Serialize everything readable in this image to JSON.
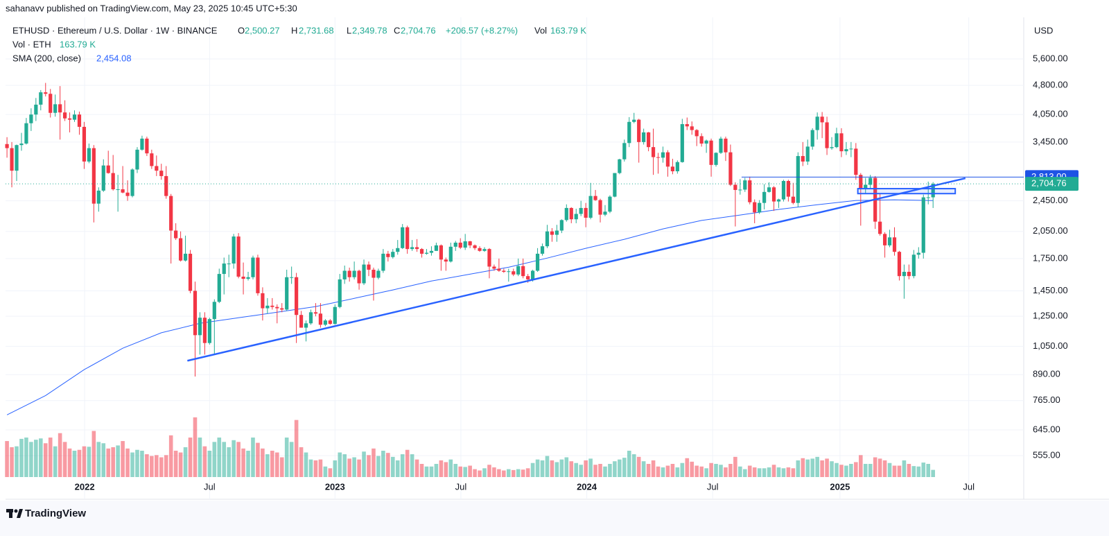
{
  "header": {
    "published": "sahanavv published on TradingView.com, May 23, 2025 10:45 UTC+5:30",
    "footer": "TradingView"
  },
  "chart_data": {
    "type": "candlestick",
    "symbol": "ETHUSD · Ethereum / U.S. Dollar · 1W · BINANCE",
    "ohlc_names": [
      "O",
      "H",
      "L",
      "C"
    ],
    "ohlc_labels": [
      "2,500.27",
      "2,731.68",
      "2,349.78",
      "2,704.76"
    ],
    "change_label": "+206.57 (+8.27%)",
    "volume_name": "Vol",
    "volume_legend": "Vol · ETH",
    "volume_label": "163.79 K",
    "currency": "USD",
    "up_color": "#22ab94",
    "down_color": "#f23645",
    "log_scale": true,
    "grid": true,
    "ylim": [
      490,
      7135
    ],
    "yticks": [
      {
        "value": 5600,
        "label": "5,600.00"
      },
      {
        "value": 4800,
        "label": "4,800.00"
      },
      {
        "value": 4050,
        "label": "4,050.00"
      },
      {
        "value": 3450,
        "label": "3,450.00"
      },
      {
        "value": 2450,
        "label": "2,450.00"
      },
      {
        "value": 2050,
        "label": "2,050.00"
      },
      {
        "value": 1750,
        "label": "1,750.00"
      },
      {
        "value": 1450,
        "label": "1,450.00"
      },
      {
        "value": 1250,
        "label": "1,250.00"
      },
      {
        "value": 1050,
        "label": "1,050.00"
      },
      {
        "value": 890,
        "label": "890.00"
      },
      {
        "value": 765,
        "label": "765.00"
      },
      {
        "value": 645,
        "label": "645.00"
      },
      {
        "value": 555,
        "label": "555.00"
      }
    ],
    "xlim": [
      -0.3,
      210.8
    ],
    "xticks": [
      {
        "value": 16.1,
        "label": "2022"
      },
      {
        "value": 42,
        "label": "Jul"
      },
      {
        "value": 68,
        "label": "2023"
      },
      {
        "value": 94.1,
        "label": "Jul"
      },
      {
        "value": 120.2,
        "label": "2024"
      },
      {
        "value": 146.3,
        "label": "Jul"
      },
      {
        "value": 172.7,
        "label": "2025"
      },
      {
        "value": 199.4,
        "label": "Jul"
      }
    ],
    "candles": [
      [
        3410,
        3550,
        3150,
        3330
      ],
      [
        3330,
        3450,
        2650,
        2920
      ],
      [
        2920,
        3400,
        2750,
        3390
      ],
      [
        3390,
        3640,
        3280,
        3420
      ],
      [
        3420,
        3970,
        3400,
        3850
      ],
      [
        3850,
        4200,
        3680,
        4050
      ],
      [
        4050,
        4460,
        3900,
        4290
      ],
      [
        4290,
        4670,
        4150,
        4610
      ],
      [
        4610,
        4870,
        4500,
        4570
      ],
      [
        4570,
        4700,
        3980,
        4090
      ],
      [
        4090,
        4550,
        4000,
        4300
      ],
      [
        4300,
        4780,
        3500,
        4100
      ],
      [
        4100,
        4400,
        3900,
        3960
      ],
      [
        3960,
        4100,
        3650,
        3930
      ],
      [
        3930,
        4150,
        3880,
        4050
      ],
      [
        4050,
        4120,
        3600,
        3770
      ],
      [
        3770,
        3880,
        2950,
        3080
      ],
      [
        3080,
        3420,
        3050,
        3330
      ],
      [
        3330,
        3390,
        2160,
        2410
      ],
      [
        2410,
        2650,
        2300,
        2600
      ],
      [
        2600,
        3120,
        2580,
        3010
      ],
      [
        3010,
        3280,
        2870,
        2880
      ],
      [
        2880,
        3200,
        2600,
        2620
      ],
      [
        2620,
        2850,
        2300,
        2620
      ],
      [
        2620,
        3000,
        2560,
        2570
      ],
      [
        2570,
        2760,
        2450,
        2520
      ],
      [
        2520,
        2960,
        2500,
        2940
      ],
      [
        2940,
        3350,
        2880,
        3300
      ],
      [
        3300,
        3580,
        3280,
        3520
      ],
      [
        3520,
        3560,
        3180,
        3230
      ],
      [
        3230,
        3300,
        2950,
        3000
      ],
      [
        3000,
        3190,
        2830,
        2920
      ],
      [
        2920,
        3040,
        2770,
        2830
      ],
      [
        2830,
        3000,
        2480,
        2520
      ],
      [
        2520,
        2550,
        1700,
        2060
      ],
      [
        2060,
        2150,
        1950,
        1970
      ],
      [
        1970,
        2050,
        1720,
        1730
      ],
      [
        1730,
        2000,
        1720,
        1800
      ],
      [
        1800,
        1840,
        1430,
        1450
      ],
      [
        1450,
        1530,
        880,
        1120
      ],
      [
        1120,
        1280,
        1000,
        1240
      ],
      [
        1240,
        1280,
        1000,
        1070
      ],
      [
        1070,
        1240,
        1060,
        1230
      ],
      [
        1230,
        1380,
        1000,
        1360
      ],
      [
        1360,
        1650,
        1350,
        1600
      ],
      [
        1600,
        1760,
        1420,
        1700
      ],
      [
        1700,
        1790,
        1570,
        1700
      ],
      [
        1700,
        2020,
        1650,
        1990
      ],
      [
        1990,
        2030,
        1560,
        1575
      ],
      [
        1575,
        1710,
        1420,
        1555
      ],
      [
        1555,
        1620,
        1540,
        1570
      ],
      [
        1570,
        1780,
        1550,
        1760
      ],
      [
        1760,
        1790,
        1410,
        1430
      ],
      [
        1430,
        1480,
        1220,
        1310
      ],
      [
        1310,
        1390,
        1270,
        1330
      ],
      [
        1330,
        1390,
        1300,
        1320
      ],
      [
        1320,
        1340,
        1200,
        1310
      ],
      [
        1310,
        1350,
        1280,
        1300
      ],
      [
        1300,
        1640,
        1290,
        1570
      ],
      [
        1570,
        1670,
        1510,
        1570
      ],
      [
        1570,
        1610,
        1070,
        1260
      ],
      [
        1260,
        1290,
        1170,
        1170
      ],
      [
        1170,
        1220,
        1080,
        1200
      ],
      [
        1200,
        1300,
        1190,
        1280
      ],
      [
        1280,
        1350,
        1250,
        1270
      ],
      [
        1270,
        1350,
        1170,
        1190
      ],
      [
        1190,
        1230,
        1180,
        1220
      ],
      [
        1220,
        1230,
        1190,
        1196
      ],
      [
        1196,
        1340,
        1190,
        1320
      ],
      [
        1320,
        1600,
        1310,
        1550
      ],
      [
        1550,
        1680,
        1510,
        1630
      ],
      [
        1630,
        1660,
        1530,
        1570
      ],
      [
        1570,
        1720,
        1550,
        1630
      ],
      [
        1630,
        1640,
        1460,
        1515
      ],
      [
        1515,
        1740,
        1500,
        1690
      ],
      [
        1690,
        1720,
        1580,
        1640
      ],
      [
        1640,
        1660,
        1370,
        1565
      ],
      [
        1565,
        1650,
        1550,
        1630
      ],
      [
        1630,
        1850,
        1610,
        1800
      ],
      [
        1800,
        1830,
        1720,
        1765
      ],
      [
        1765,
        1850,
        1750,
        1820
      ],
      [
        1820,
        1950,
        1790,
        1860
      ],
      [
        1860,
        2140,
        1850,
        2100
      ],
      [
        2100,
        2120,
        1800,
        1850
      ],
      [
        1850,
        1950,
        1830,
        1870
      ],
      [
        1870,
        1960,
        1820,
        1850
      ],
      [
        1850,
        1860,
        1760,
        1800
      ],
      [
        1800,
        1850,
        1790,
        1810
      ],
      [
        1810,
        1880,
        1780,
        1830
      ],
      [
        1830,
        1920,
        1830,
        1890
      ],
      [
        1890,
        1900,
        1630,
        1740
      ],
      [
        1740,
        1760,
        1630,
        1720
      ],
      [
        1720,
        1920,
        1710,
        1875
      ],
      [
        1875,
        1940,
        1830,
        1920
      ],
      [
        1920,
        1970,
        1850,
        1865
      ],
      [
        1865,
        2020,
        1840,
        1935
      ],
      [
        1935,
        1940,
        1860,
        1890
      ],
      [
        1890,
        1900,
        1840,
        1860
      ],
      [
        1860,
        1880,
        1820,
        1830
      ],
      [
        1830,
        1870,
        1820,
        1850
      ],
      [
        1850,
        1860,
        1560,
        1670
      ],
      [
        1670,
        1690,
        1630,
        1650
      ],
      [
        1650,
        1750,
        1620,
        1630
      ],
      [
        1630,
        1650,
        1610,
        1620
      ],
      [
        1620,
        1650,
        1530,
        1625
      ],
      [
        1625,
        1650,
        1580,
        1595
      ],
      [
        1595,
        1750,
        1580,
        1675
      ],
      [
        1675,
        1750,
        1560,
        1580
      ],
      [
        1580,
        1600,
        1520,
        1550
      ],
      [
        1550,
        1640,
        1530,
        1630
      ],
      [
        1630,
        1860,
        1620,
        1800
      ],
      [
        1800,
        1910,
        1780,
        1880
      ],
      [
        1880,
        2130,
        1860,
        2050
      ],
      [
        2050,
        2090,
        1930,
        2010
      ],
      [
        2010,
        2130,
        1930,
        2060
      ],
      [
        2060,
        2200,
        2030,
        2190
      ],
      [
        2190,
        2400,
        2170,
        2350
      ],
      [
        2350,
        2360,
        2150,
        2200
      ],
      [
        2200,
        2340,
        2150,
        2270
      ],
      [
        2270,
        2450,
        2240,
        2350
      ],
      [
        2350,
        2420,
        2100,
        2220
      ],
      [
        2220,
        2720,
        2200,
        2520
      ],
      [
        2520,
        2610,
        2450,
        2460
      ],
      [
        2460,
        2480,
        2160,
        2260
      ],
      [
        2260,
        2390,
        2240,
        2300
      ],
      [
        2300,
        2530,
        2280,
        2510
      ],
      [
        2510,
        2880,
        2500,
        2880
      ],
      [
        2880,
        3130,
        2860,
        3120
      ],
      [
        3120,
        3500,
        3080,
        3430
      ],
      [
        3430,
        3990,
        3350,
        3880
      ],
      [
        3880,
        4090,
        3850,
        3930
      ],
      [
        3930,
        3950,
        3060,
        3450
      ],
      [
        3450,
        3730,
        3400,
        3650
      ],
      [
        3650,
        3660,
        3270,
        3350
      ],
      [
        3350,
        3730,
        2850,
        3160
      ],
      [
        3160,
        3240,
        2870,
        3150
      ],
      [
        3150,
        3360,
        3060,
        3250
      ],
      [
        3250,
        3290,
        2820,
        2990
      ],
      [
        2990,
        3130,
        2860,
        2910
      ],
      [
        2910,
        3100,
        2870,
        3070
      ],
      [
        3070,
        3950,
        3060,
        3830
      ],
      [
        3830,
        3980,
        3700,
        3780
      ],
      [
        3780,
        3890,
        3600,
        3700
      ],
      [
        3700,
        3720,
        3370,
        3570
      ],
      [
        3570,
        3630,
        3360,
        3420
      ],
      [
        3420,
        3500,
        3240,
        3480
      ],
      [
        3480,
        3520,
        2820,
        3020
      ],
      [
        3020,
        3250,
        2990,
        3240
      ],
      [
        3240,
        3560,
        3220,
        3520
      ],
      [
        3520,
        3560,
        3090,
        3250
      ],
      [
        3250,
        3400,
        2670,
        2690
      ],
      [
        2690,
        2730,
        2110,
        2610
      ],
      [
        2610,
        2780,
        2540,
        2615
      ],
      [
        2615,
        2800,
        2580,
        2760
      ],
      [
        2760,
        2820,
        2400,
        2430
      ],
      [
        2430,
        2470,
        2150,
        2290
      ],
      [
        2290,
        2460,
        2270,
        2420
      ],
      [
        2420,
        2700,
        2330,
        2580
      ],
      [
        2580,
        2730,
        2570,
        2650
      ],
      [
        2650,
        2670,
        2310,
        2440
      ],
      [
        2440,
        2480,
        2350,
        2470
      ],
      [
        2470,
        2770,
        2440,
        2750
      ],
      [
        2750,
        2770,
        2440,
        2510
      ],
      [
        2510,
        2720,
        2400,
        2420
      ],
      [
        2420,
        3250,
        2360,
        3180
      ],
      [
        3180,
        3450,
        3000,
        3080
      ],
      [
        3080,
        3500,
        3020,
        3360
      ],
      [
        3360,
        3740,
        3300,
        3700
      ],
      [
        3700,
        4100,
        3500,
        4000
      ],
      [
        4000,
        4110,
        3530,
        3870
      ],
      [
        3870,
        4000,
        3200,
        3330
      ],
      [
        3330,
        3550,
        3300,
        3350
      ],
      [
        3350,
        3750,
        3330,
        3630
      ],
      [
        3630,
        3740,
        3160,
        3270
      ],
      [
        3270,
        3450,
        3200,
        3310
      ],
      [
        3310,
        3450,
        3160,
        3320
      ],
      [
        3320,
        3430,
        2770,
        2850
      ],
      [
        2850,
        2880,
        2120,
        2630
      ],
      [
        2630,
        2800,
        2560,
        2690
      ],
      [
        2690,
        2850,
        2640,
        2800
      ],
      [
        2800,
        2830,
        2080,
        2170
      ],
      [
        2170,
        2550,
        2000,
        2020
      ],
      [
        2020,
        2040,
        1760,
        1890
      ],
      [
        1890,
        2070,
        1870,
        1980
      ],
      [
        1980,
        2100,
        1780,
        1820
      ],
      [
        1820,
        1830,
        1540,
        1580
      ],
      [
        1580,
        1690,
        1385,
        1620
      ],
      [
        1620,
        1690,
        1550,
        1580
      ],
      [
        1580,
        1840,
        1560,
        1790
      ],
      [
        1790,
        1870,
        1750,
        1810
      ],
      [
        1810,
        2540,
        1750,
        2500
      ],
      [
        2500,
        2740,
        2400,
        2500
      ],
      [
        2500.27,
        2731.68,
        2349.78,
        2704.76
      ]
    ],
    "volume": [
      820,
      680,
      700,
      870,
      900,
      800,
      850,
      880,
      770,
      900,
      700,
      1000,
      800,
      650,
      600,
      620,
      700,
      690,
      1050,
      800,
      770,
      650,
      680,
      720,
      820,
      650,
      560,
      620,
      600,
      520,
      480,
      500,
      450,
      500,
      950,
      600,
      560,
      680,
      900,
      1360,
      900,
      700,
      600,
      800,
      900,
      800,
      680,
      840,
      800,
      650,
      600,
      900,
      780,
      650,
      520,
      600,
      560,
      450,
      900,
      800,
      1300,
      680,
      560,
      400,
      380,
      400,
      240,
      200,
      380,
      560,
      520,
      420,
      450,
      400,
      580,
      500,
      650,
      480,
      600,
      550,
      460,
      380,
      520,
      620,
      520,
      400,
      300,
      240,
      240,
      300,
      380,
      340,
      400,
      300,
      240,
      230,
      260,
      180,
      150,
      200,
      280,
      220,
      180,
      150,
      180,
      160,
      180,
      170,
      200,
      320,
      400,
      380,
      480,
      380,
      340,
      400,
      450,
      360,
      320,
      280,
      380,
      420,
      280,
      300,
      240,
      300,
      360,
      400,
      440,
      600,
      520,
      460,
      360,
      300,
      380,
      240,
      220,
      260,
      300,
      220,
      320,
      430,
      350,
      260,
      240,
      200,
      320,
      300,
      280,
      220,
      300,
      460,
      240,
      180,
      260,
      220,
      200,
      200,
      220,
      280,
      220,
      200,
      220,
      200,
      380,
      430,
      400,
      420,
      460,
      380,
      420,
      360,
      320,
      280,
      260,
      300,
      340,
      500,
      300,
      300,
      450,
      420,
      380,
      320,
      260,
      260,
      380,
      300,
      250,
      240,
      330,
      300,
      163.79
    ],
    "volume_ylim": [
      0,
      1500
    ],
    "sma": {
      "name": "SMA (200, close)",
      "value_label": "2,454.08",
      "color": "#2962ff",
      "x": [
        0,
        8,
        16,
        24,
        32,
        40,
        48,
        56,
        64,
        72,
        80,
        88,
        96,
        104,
        112,
        120,
        128,
        136,
        144,
        152,
        160,
        168,
        176,
        184,
        192
      ],
      "values": [
        704,
        788,
        916,
        1038,
        1136,
        1200,
        1240,
        1280,
        1323,
        1388,
        1458,
        1535,
        1598,
        1664,
        1755,
        1858,
        1958,
        2080,
        2185,
        2255,
        2330,
        2395,
        2455,
        2465,
        2454.08
      ]
    },
    "trendline": {
      "x": [
        37.4,
        198.7
      ],
      "values": [
        965,
        2794
      ],
      "color": "#2962ff"
    },
    "level": {
      "value": 2813,
      "label": "2,813.00",
      "x": 152.3,
      "color": "#1e53e5"
    },
    "zone": {
      "x": [
        176.4,
        196.6
      ],
      "values": [
        2555,
        2630
      ],
      "color": "#2962ff"
    }
  }
}
